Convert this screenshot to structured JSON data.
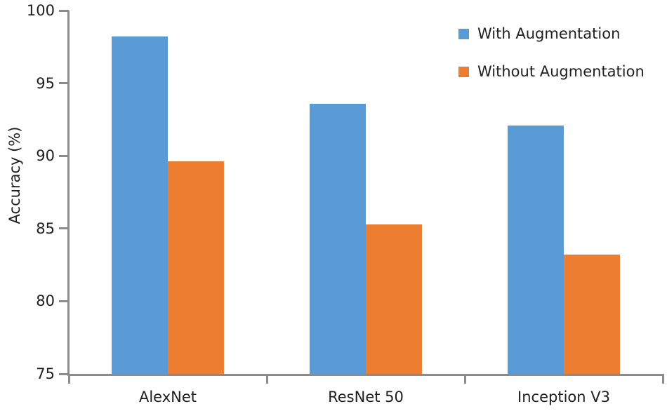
{
  "chart_data": {
    "type": "bar",
    "title": "",
    "xlabel": "",
    "ylabel": "Accuracy (%)",
    "categories": [
      "AlexNet",
      "ResNet 50",
      "Inception V3"
    ],
    "series": [
      {
        "name": "With Augmentation",
        "color": "#5B9BD5",
        "values": [
          98.2,
          93.6,
          92.1
        ]
      },
      {
        "name": "Without Augmentation",
        "color": "#ED7D31",
        "values": [
          89.6,
          85.3,
          83.2
        ]
      }
    ],
    "ylim": [
      75,
      100
    ],
    "yticks": [
      75,
      80,
      85,
      90,
      95,
      100
    ],
    "grid": "off",
    "legend_position": "top-right",
    "axis_color": "#8C8C8C",
    "text_color": "#1f1f1f"
  }
}
